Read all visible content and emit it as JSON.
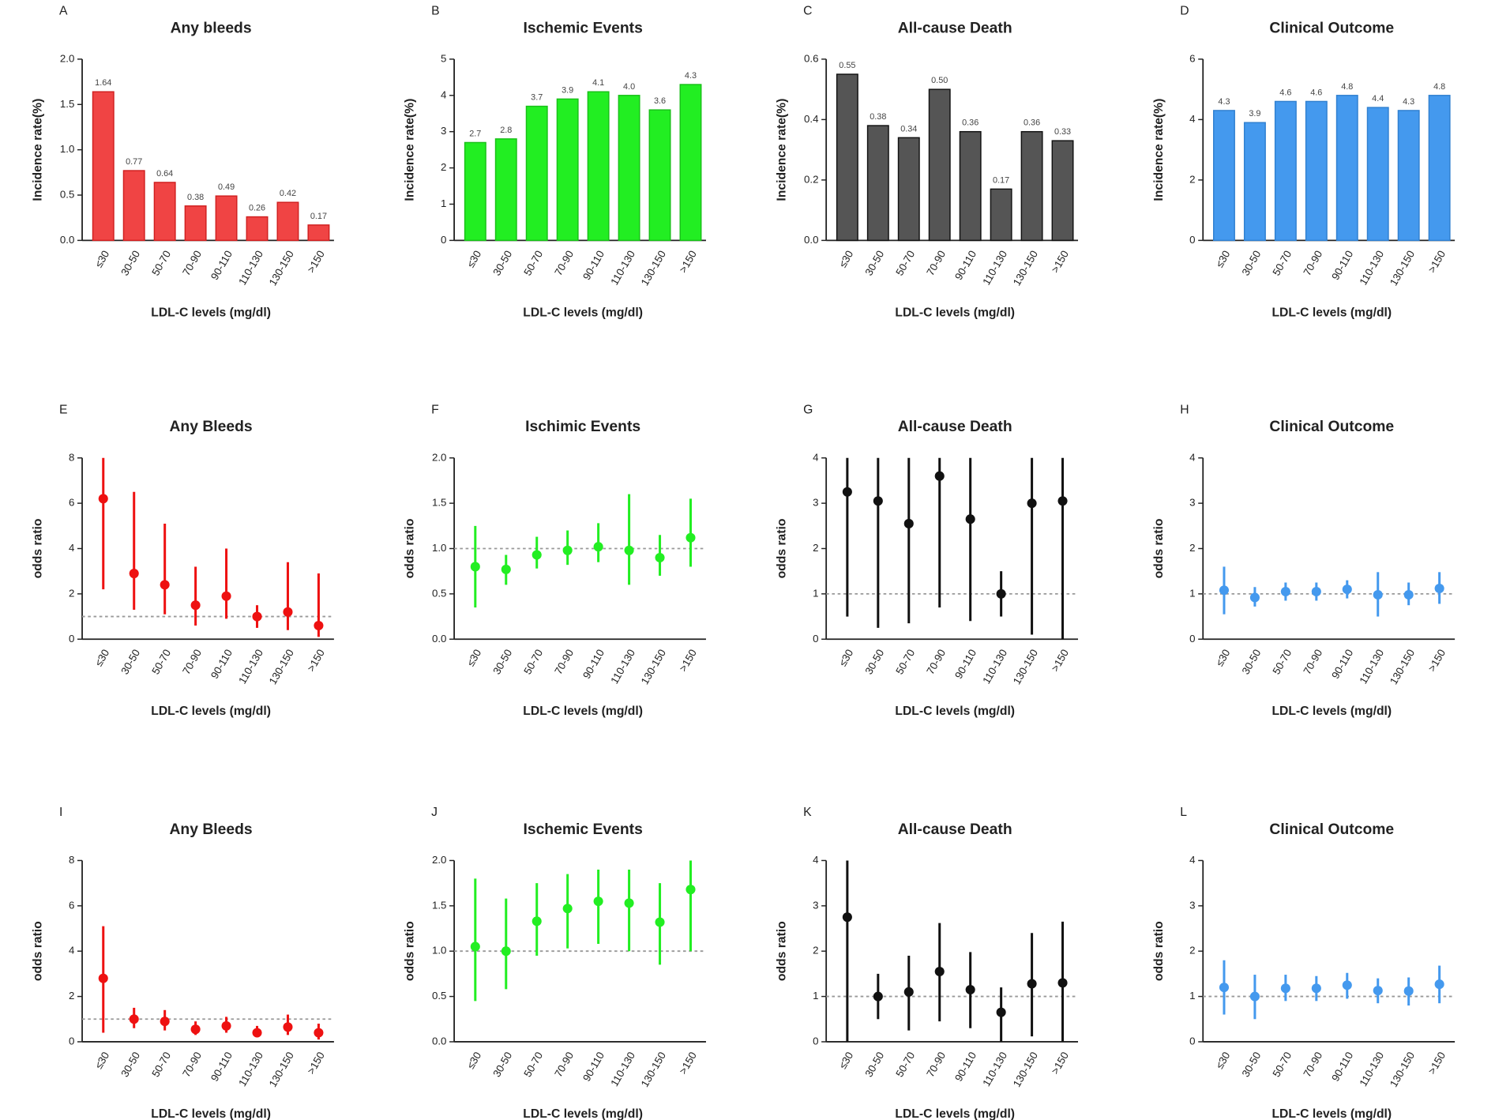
{
  "chart_data": [
    {
      "label": "A",
      "type": "bar",
      "title": "Any bleeds",
      "x_label": "LDL-C levels (mg/dl)",
      "y_label": "Incidence rate(%)",
      "categories": [
        "≤30",
        "30-50",
        "50-70",
        "70-90",
        "90-110",
        "110-130",
        "130-150",
        ">150"
      ],
      "values": [
        1.64,
        0.77,
        0.64,
        0.38,
        0.49,
        0.26,
        0.42,
        0.17
      ],
      "value_labels": [
        "1.64",
        "0.77",
        "0.64",
        "0.38",
        "0.49",
        "0.26",
        "0.42",
        "0.17"
      ],
      "color": "#f04444",
      "edge_color": "#d02020",
      "ylim": [
        0,
        2
      ],
      "yticks": [
        {
          "value": 0,
          "label": "0.0"
        },
        0.5,
        {
          "value": 1,
          "label": "1.0"
        },
        1.5,
        {
          "value": 2,
          "label": "2.0"
        }
      ]
    },
    {
      "label": "B",
      "type": "bar",
      "title": "Ischemic Events",
      "x_label": "LDL-C levels (mg/dl)",
      "y_label": "Incidence rate(%)",
      "categories": [
        "≤30",
        "30-50",
        "50-70",
        "70-90",
        "90-110",
        "110-130",
        "130-150",
        ">150"
      ],
      "values": [
        2.7,
        2.8,
        3.7,
        3.9,
        4.1,
        4.0,
        3.6,
        4.3
      ],
      "value_labels": [
        "2.7",
        "2.8",
        "3.7",
        "3.9",
        "4.1",
        "4.0",
        "3.6",
        "4.3"
      ],
      "color": "#22ee22",
      "edge_color": "#18c018",
      "ylim": [
        0,
        5
      ],
      "yticks": [
        0,
        1,
        2,
        3,
        4,
        5
      ]
    },
    {
      "label": "C",
      "type": "bar",
      "title": "All-cause Death",
      "x_label": "LDL-C levels (mg/dl)",
      "y_label": "Incidence rate(%)",
      "categories": [
        "≤30",
        "30-50",
        "50-70",
        "70-90",
        "90-110",
        "110-130",
        "130-150",
        ">150"
      ],
      "values": [
        0.55,
        0.38,
        0.34,
        0.5,
        0.36,
        0.17,
        0.36,
        0.33
      ],
      "value_labels": [
        "0.55",
        "0.38",
        "0.34",
        "0.50",
        "0.36",
        "0.17",
        "0.36",
        "0.33"
      ],
      "color": "#555555",
      "edge_color": "#111111",
      "ylim": [
        0,
        0.6
      ],
      "yticks": [
        {
          "value": 0,
          "label": "0.0"
        },
        0.2,
        0.4,
        0.6
      ]
    },
    {
      "label": "D",
      "type": "bar",
      "title": "Clinical Outcome",
      "x_label": "LDL-C levels (mg/dl)",
      "y_label": "Incidence rate(%)",
      "categories": [
        "≤30",
        "30-50",
        "50-70",
        "70-90",
        "90-110",
        "110-130",
        "130-150",
        ">150"
      ],
      "values": [
        4.3,
        3.9,
        4.6,
        4.6,
        4.8,
        4.4,
        4.3,
        4.8
      ],
      "value_labels": [
        "4.3",
        "3.9",
        "4.6",
        "4.6",
        "4.8",
        "4.4",
        "4.3",
        "4.8"
      ],
      "color": "#4499ee",
      "edge_color": "#3080d0",
      "ylim": [
        0,
        6
      ],
      "yticks": [
        0,
        2,
        4,
        6
      ]
    },
    {
      "label": "E",
      "type": "errorbar",
      "title": "Any Bleeds",
      "x_label": "LDL-C levels (mg/dl)",
      "y_label": "odds ratio",
      "categories": [
        "≤30",
        "30-50",
        "50-70",
        "70-90",
        "90-110",
        "110-130",
        "130-150",
        ">150"
      ],
      "values": [
        6.2,
        2.9,
        2.4,
        1.5,
        1.9,
        1.0,
        1.2,
        0.6
      ],
      "lower": [
        2.2,
        1.3,
        1.1,
        0.6,
        0.9,
        0.5,
        0.4,
        0.1
      ],
      "upper": [
        8,
        6.5,
        5.1,
        3.2,
        4.0,
        1.5,
        3.4,
        2.9
      ],
      "ref_line": 1,
      "color": "#ee1111",
      "ylim": [
        0,
        8
      ],
      "yticks": [
        0,
        2,
        4,
        6,
        8
      ]
    },
    {
      "label": "F",
      "type": "errorbar",
      "title": "Ischimic Events",
      "x_label": "LDL-C levels (mg/dl)",
      "y_label": "odds ratio",
      "categories": [
        "≤30",
        "30-50",
        "50-70",
        "70-90",
        "90-110",
        "110-130",
        "130-150",
        ">150"
      ],
      "values": [
        0.8,
        0.77,
        0.93,
        0.98,
        1.02,
        0.98,
        0.9,
        1.12
      ],
      "lower": [
        0.35,
        0.6,
        0.78,
        0.82,
        0.85,
        0.6,
        0.7,
        0.8
      ],
      "upper": [
        1.25,
        0.93,
        1.13,
        1.2,
        1.28,
        1.6,
        1.15,
        1.55
      ],
      "ref_line": 1,
      "color": "#22ee22",
      "ylim": [
        0,
        2
      ],
      "yticks": [
        {
          "value": 0,
          "label": "0.0"
        },
        0.5,
        {
          "value": 1,
          "label": "1.0"
        },
        1.5,
        {
          "value": 2,
          "label": "2.0"
        }
      ]
    },
    {
      "label": "G",
      "type": "errorbar",
      "title": "All-cause Death",
      "x_label": "LDL-C levels (mg/dl)",
      "y_label": "odds ratio",
      "categories": [
        "≤30",
        "30-50",
        "50-70",
        "70-90",
        "90-110",
        "110-130",
        "130-150",
        ">150"
      ],
      "values": [
        3.25,
        3.05,
        2.55,
        3.6,
        2.65,
        1.0,
        3.0,
        3.05
      ],
      "lower": [
        0.5,
        0.25,
        0.35,
        0.7,
        0.4,
        0.5,
        0.1,
        0
      ],
      "upper": [
        4,
        4,
        4,
        4,
        4,
        1.5,
        4,
        4
      ],
      "ref_line": 1,
      "color": "#111111",
      "ylim": [
        0,
        4
      ],
      "yticks": [
        0,
        1,
        2,
        3,
        4
      ]
    },
    {
      "label": "H",
      "type": "errorbar",
      "title": "Clinical Outcome",
      "x_label": "LDL-C levels (mg/dl)",
      "y_label": "odds ratio",
      "categories": [
        "≤30",
        "30-50",
        "50-70",
        "70-90",
        "90-110",
        "110-130",
        "130-150",
        ">150"
      ],
      "values": [
        1.08,
        0.92,
        1.05,
        1.05,
        1.1,
        0.98,
        0.98,
        1.12
      ],
      "lower": [
        0.55,
        0.72,
        0.85,
        0.85,
        0.9,
        0.5,
        0.75,
        0.78
      ],
      "upper": [
        1.6,
        1.15,
        1.25,
        1.25,
        1.3,
        1.48,
        1.25,
        1.48
      ],
      "ref_line": 1,
      "color": "#4499ee",
      "ylim": [
        0,
        4
      ],
      "yticks": [
        0,
        1,
        2,
        3,
        4
      ]
    },
    {
      "label": "I",
      "type": "errorbar",
      "title": "Any Bleeds",
      "x_label": "LDL-C levels (mg/dl)",
      "y_label": "odds ratio",
      "categories": [
        "≤30",
        "30-50",
        "50-70",
        "70-90",
        "90-110",
        "110-130",
        "130-150",
        ">150"
      ],
      "values": [
        2.8,
        1.0,
        0.9,
        0.55,
        0.7,
        0.4,
        0.65,
        0.4
      ],
      "lower": [
        0.4,
        0.6,
        0.5,
        0.3,
        0.4,
        0.2,
        0.3,
        0.1
      ],
      "upper": [
        5.1,
        1.5,
        1.4,
        0.9,
        1.1,
        0.7,
        1.2,
        0.8
      ],
      "ref_line": 1,
      "color": "#ee1111",
      "ylim": [
        0,
        8
      ],
      "yticks": [
        0,
        2,
        4,
        6,
        8
      ]
    },
    {
      "label": "J",
      "type": "errorbar",
      "title": "Ischemic Events",
      "x_label": "LDL-C levels (mg/dl)",
      "y_label": "odds ratio",
      "categories": [
        "≤30",
        "30-50",
        "50-70",
        "70-90",
        "90-110",
        "110-130",
        "130-150",
        ">150"
      ],
      "values": [
        1.05,
        1.0,
        1.33,
        1.47,
        1.55,
        1.53,
        1.32,
        1.68
      ],
      "lower": [
        0.45,
        0.58,
        0.95,
        1.03,
        1.08,
        1.0,
        0.85,
        1.0
      ],
      "upper": [
        1.8,
        1.58,
        1.75,
        1.85,
        1.9,
        1.9,
        1.75,
        2.0
      ],
      "ref_line": 1,
      "color": "#22ee22",
      "ylim": [
        0,
        2
      ],
      "yticks": [
        {
          "value": 0,
          "label": "0.0"
        },
        0.5,
        {
          "value": 1,
          "label": "1.0"
        },
        1.5,
        {
          "value": 2,
          "label": "2.0"
        }
      ]
    },
    {
      "label": "K",
      "type": "errorbar",
      "title": "All-cause Death",
      "x_label": "LDL-C levels (mg/dl)",
      "y_label": "odds ratio",
      "categories": [
        "≤30",
        "30-50",
        "50-70",
        "70-90",
        "90-110",
        "110-130",
        "130-150",
        ">150"
      ],
      "values": [
        2.75,
        1.0,
        1.1,
        1.55,
        1.15,
        0.65,
        1.28,
        1.3
      ],
      "lower": [
        0,
        0.5,
        0.25,
        0.45,
        0.3,
        0,
        0.12,
        0
      ],
      "upper": [
        4,
        1.5,
        1.9,
        2.62,
        1.98,
        1.2,
        2.4,
        2.65
      ],
      "ref_line": 1,
      "color": "#111111",
      "ylim": [
        0,
        4
      ],
      "yticks": [
        0,
        1,
        2,
        3,
        4
      ]
    },
    {
      "label": "L",
      "type": "errorbar",
      "title": "Clinical Outcome",
      "x_label": "LDL-C levels (mg/dl)",
      "y_label": "odds ratio",
      "categories": [
        "≤30",
        "30-50",
        "50-70",
        "70-90",
        "90-110",
        "110-130",
        "130-150",
        ">150"
      ],
      "values": [
        1.2,
        1.0,
        1.18,
        1.18,
        1.25,
        1.13,
        1.12,
        1.27
      ],
      "lower": [
        0.6,
        0.5,
        0.9,
        0.9,
        0.95,
        0.85,
        0.8,
        0.85
      ],
      "upper": [
        1.8,
        1.48,
        1.48,
        1.45,
        1.52,
        1.4,
        1.42,
        1.68
      ],
      "ref_line": 1,
      "color": "#4499ee",
      "ylim": [
        0,
        4
      ],
      "yticks": [
        0,
        1,
        2,
        3,
        4
      ]
    }
  ]
}
